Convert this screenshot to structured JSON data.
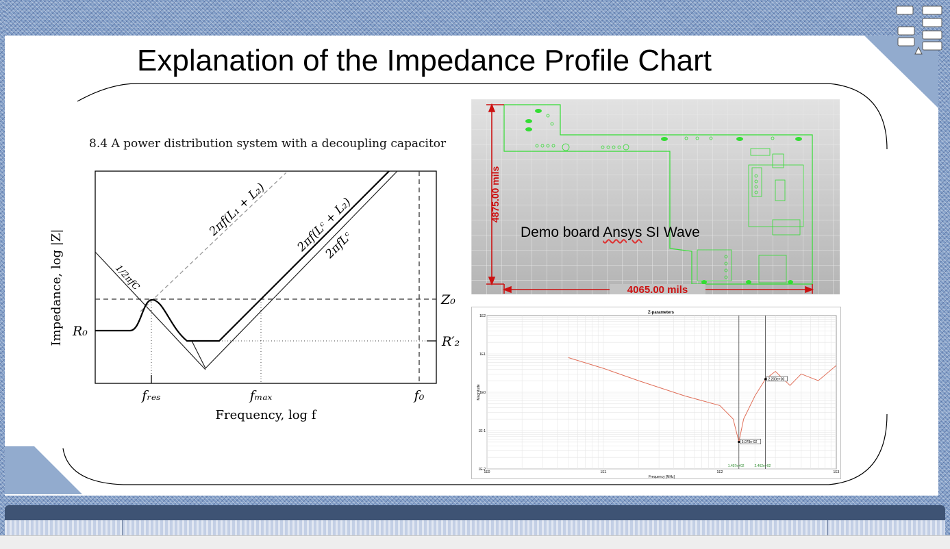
{
  "slide": {
    "title": "Explanation of the Impedance Profile Chart"
  },
  "diagram": {
    "heading": "8.4  A power distribution system with a decoupling capacitor",
    "ylabel": "Impedance, log |Z|",
    "xlabel": "Frequency, log f",
    "curve_labels": {
      "cap": "1/2πfC",
      "l1l2": "2πf(L₁ + L₂)",
      "lcl2": "2πf(Lᶜ + L₂)",
      "lc": "2πfLᶜ"
    },
    "y_ticks": {
      "r0": "R₀",
      "z0": "Z₀",
      "r2": "R′₂"
    },
    "x_ticks": {
      "fres": "fᵣₑₛ",
      "fmax": "fₘₐₓ",
      "f0": "f₀"
    }
  },
  "pcb": {
    "height_label": "4875.00 mils",
    "width_label": "4065.00 mils",
    "caption_before": "Demo board ",
    "caption_squiggle": "Ansys",
    "caption_after": " SI Wave"
  },
  "zplot": {
    "title": "Z-parameters",
    "ylabel": "Magnitude",
    "xlabel": "Frequency [MHz]",
    "y_ticks": [
      "1E2",
      "1E1",
      "1E0",
      "1E-1",
      "1E-2"
    ],
    "x_ticks": [
      "1E0",
      "1E1",
      "1E2",
      "1E3"
    ],
    "marker_min": "5.078e-02",
    "marker_max": "2.200e+00",
    "cursor_1": "1.457e+02",
    "cursor_2": "2.462e+02"
  },
  "chart_data": {
    "type": "line",
    "title": "Z-parameters",
    "xlabel": "Frequency [MHz]",
    "ylabel": "Magnitude",
    "x_scale": "log",
    "y_scale": "log",
    "xlim": [
      1,
      1000
    ],
    "ylim": [
      0.01,
      100
    ],
    "series": [
      {
        "x": [
          5,
          10,
          20,
          50,
          100,
          130,
          145.7,
          160,
          200,
          246.2,
          300,
          400,
          500,
          700,
          1000
        ],
        "y": [
          8,
          4.2,
          2.0,
          0.8,
          0.45,
          0.2,
          0.0508,
          0.2,
          0.8,
          2.2,
          3.5,
          1.5,
          3.0,
          2.0,
          5.0
        ]
      }
    ],
    "cursors": [
      145.7,
      246.2
    ],
    "markers": [
      {
        "x": 145.7,
        "y": 0.05078,
        "label": "5.078e-02"
      },
      {
        "x": 246.2,
        "y": 2.2,
        "label": "2.200e+00"
      }
    ],
    "grid": true,
    "color": "#e0705a"
  },
  "colors": {
    "accent": "#7f9cc6",
    "footer": "#3e5374",
    "pcb_trace": "#33dd33",
    "pcb_dim": "#cc1111",
    "curve": "#e0705a"
  },
  "icons": {
    "logo": "gear-grid-logo-icon"
  }
}
